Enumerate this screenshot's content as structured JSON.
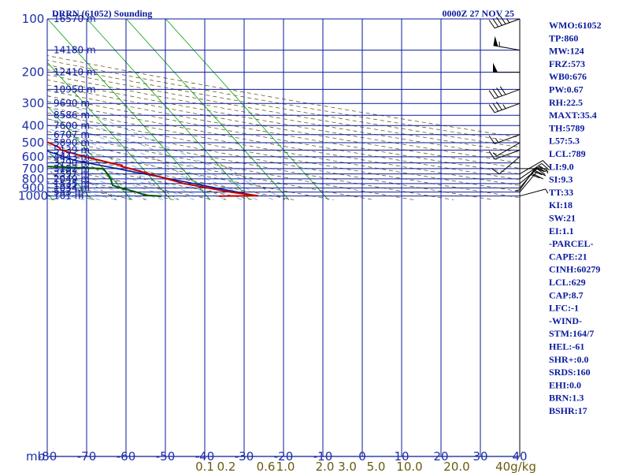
{
  "chart_data": {
    "type": "skew-t",
    "title": "DRRN (61052) Sounding",
    "valid_time": "0000Z 27 NOV 25",
    "pressure_axis_label": "mb",
    "pressure_ticks": [
      100,
      200,
      300,
      400,
      500,
      600,
      700,
      800,
      900,
      1000
    ],
    "temperature_ticks": [
      -80,
      -70,
      -60,
      -50,
      -40,
      -30,
      -20,
      -10,
      0,
      10,
      20,
      30,
      40
    ],
    "mixing_ratio_labels": [
      "0.1",
      "0.2",
      "0.6",
      "1.0",
      "2.0",
      "3.0",
      "5.0",
      "10.0",
      "20.0",
      "40g/kg"
    ],
    "mixing_ratio_label_temps": [
      -40,
      -34.5,
      -24.5,
      -19.5,
      -9.5,
      -3.8,
      3.5,
      12,
      24,
      39
    ],
    "height_labels": [
      {
        "p": 100,
        "label": "16570 m"
      },
      {
        "p": 150,
        "label": "14180 m"
      },
      {
        "p": 200,
        "label": "12410 m"
      },
      {
        "p": 250,
        "label": "10950 m"
      },
      {
        "p": 300,
        "label": "9690 m"
      },
      {
        "p": 350,
        "label": "8586 m"
      },
      {
        "p": 400,
        "label": "7600 m"
      },
      {
        "p": 450,
        "label": "6707 m"
      },
      {
        "p": 500,
        "label": "5890 m"
      },
      {
        "p": 550,
        "label": "5139 m"
      },
      {
        "p": 600,
        "label": "4443 m"
      },
      {
        "p": 650,
        "label": "3790 m"
      },
      {
        "p": 700,
        "label": "3182 m"
      },
      {
        "p": 750,
        "label": "2597 m"
      },
      {
        "p": 800,
        "label": "2049 m"
      },
      {
        "p": 850,
        "label": "1535 m"
      },
      {
        "p": 900,
        "label": "1034 m"
      },
      {
        "p": 950,
        "label": "553 m"
      },
      {
        "p": 1000,
        "label": "101 m"
      }
    ],
    "temperature_profile": [
      {
        "p": 1000,
        "t": 23.0
      },
      {
        "p": 995,
        "t": 33.0
      },
      {
        "p": 950,
        "t": 27.0
      },
      {
        "p": 850,
        "t": 17.0
      },
      {
        "p": 700,
        "t": 6.8
      },
      {
        "p": 680,
        "t": 5.0
      },
      {
        "p": 670,
        "t": 5.5
      },
      {
        "p": 660,
        "t": 4.0
      },
      {
        "p": 600,
        "t": -2.0
      },
      {
        "p": 550,
        "t": -6.5
      },
      {
        "p": 530,
        "t": -6.5
      },
      {
        "p": 500,
        "t": -8.0
      },
      {
        "p": 450,
        "t": -13.0
      },
      {
        "p": 400,
        "t": -19.5
      },
      {
        "p": 300,
        "t": -32.0
      },
      {
        "p": 200,
        "t": -49.0
      },
      {
        "p": 150,
        "t": -60.0
      },
      {
        "p": 110,
        "t": -64.0
      },
      {
        "p": 100,
        "t": -69.5
      }
    ],
    "dewpoint_profile": [
      {
        "p": 1000,
        "td": 8.5
      },
      {
        "p": 990,
        "td": 4.5
      },
      {
        "p": 950,
        "td": 3.0
      },
      {
        "p": 900,
        "td": 0.0
      },
      {
        "p": 870,
        "td": -1.5
      },
      {
        "p": 800,
        "td": -0.5
      },
      {
        "p": 700,
        "td": 0.0
      },
      {
        "p": 680,
        "td": -15.0
      },
      {
        "p": 650,
        "td": -20.0
      },
      {
        "p": 600,
        "td": -28.0
      },
      {
        "p": 570,
        "td": -26.0
      },
      {
        "p": 550,
        "td": -33.0
      },
      {
        "p": 500,
        "td": -39.0
      },
      {
        "p": 450,
        "td": -40.0
      },
      {
        "p": 400,
        "td": -35.5
      },
      {
        "p": 360,
        "td": -40.0
      },
      {
        "p": 330,
        "td": -43.0
      },
      {
        "p": 300,
        "td": -46.0
      },
      {
        "p": 250,
        "td": -49.0
      },
      {
        "p": 200,
        "td": -57.0
      },
      {
        "p": 150,
        "td": -73.0
      },
      {
        "p": 120,
        "td": -77.5
      },
      {
        "p": 110,
        "td": -78.0
      },
      {
        "p": 100,
        "td": -85.0
      }
    ],
    "parcel_profile": [
      {
        "p": 1000,
        "t": 33.0
      },
      {
        "p": 629,
        "t": -5.5
      },
      {
        "p": 500,
        "t": -14.5
      },
      {
        "p": 400,
        "t": -25.0
      },
      {
        "p": 300,
        "t": -41.0
      },
      {
        "p": 200,
        "t": -62.0
      },
      {
        "p": 150,
        "t": -76.0
      }
    ],
    "wind_profile": [
      {
        "p": 1000,
        "dir": 75,
        "spd": 5
      },
      {
        "p": 950,
        "dir": 40,
        "spd": 20
      },
      {
        "p": 925,
        "dir": 35,
        "spd": 30
      },
      {
        "p": 900,
        "dir": 40,
        "spd": 25
      },
      {
        "p": 850,
        "dir": 50,
        "spd": 20
      },
      {
        "p": 800,
        "dir": 55,
        "spd": 15
      },
      {
        "p": 750,
        "dir": 60,
        "spd": 10
      },
      {
        "p": 700,
        "dir": 90,
        "spd": 5
      },
      {
        "p": 650,
        "dir": 180,
        "spd": 5
      },
      {
        "p": 600,
        "dir": 230,
        "spd": 10
      },
      {
        "p": 550,
        "dir": 250,
        "spd": 10
      },
      {
        "p": 500,
        "dir": 240,
        "spd": 5
      },
      {
        "p": 450,
        "dir": 250,
        "spd": 15
      },
      {
        "p": 300,
        "dir": 250,
        "spd": 35
      },
      {
        "p": 250,
        "dir": 250,
        "spd": 40
      },
      {
        "p": 200,
        "dir": 270,
        "spd": 50
      },
      {
        "p": 150,
        "dir": 280,
        "spd": 55
      },
      {
        "p": 100,
        "dir": 250,
        "spd": 45
      }
    ],
    "xlim": [
      -80,
      40
    ],
    "ylim": [
      1050,
      100
    ]
  },
  "indices": [
    "WMO:61052",
    "TP:860",
    "MW:124",
    "FRZ:573",
    "WB0:676",
    "PW:0.67",
    "RH:22.5",
    "MAXT:35.4",
    "TH:5789",
    "L57:5.3",
    "LCL:789",
    "LI:9.0",
    "SI:9.3",
    "TT:33",
    "KI:18",
    "SW:21",
    "EI:1.1",
    "-PARCEL-",
    "CAPE:21",
    "CINH:60279",
    "LCL:629",
    "CAP:8.7",
    "LFC:-1",
    "-WIND-",
    "STM:164/7",
    "HEL:-61",
    "SHR+:0.0",
    "SRDS:160",
    "EHI:0.0",
    "BRN:1.3",
    "BSHR:17"
  ],
  "colors": {
    "grid": "#0a1a9c",
    "isotherm": "#00a000",
    "dry_adiabat": "#6b5a10",
    "moist_adiabat": "#5fa8ff",
    "mixing_ratio": "#6b5a10",
    "temperature": "#c00000",
    "dewpoint": "#005a00",
    "parcel": "#0a1a9c",
    "wind": "#000000"
  }
}
